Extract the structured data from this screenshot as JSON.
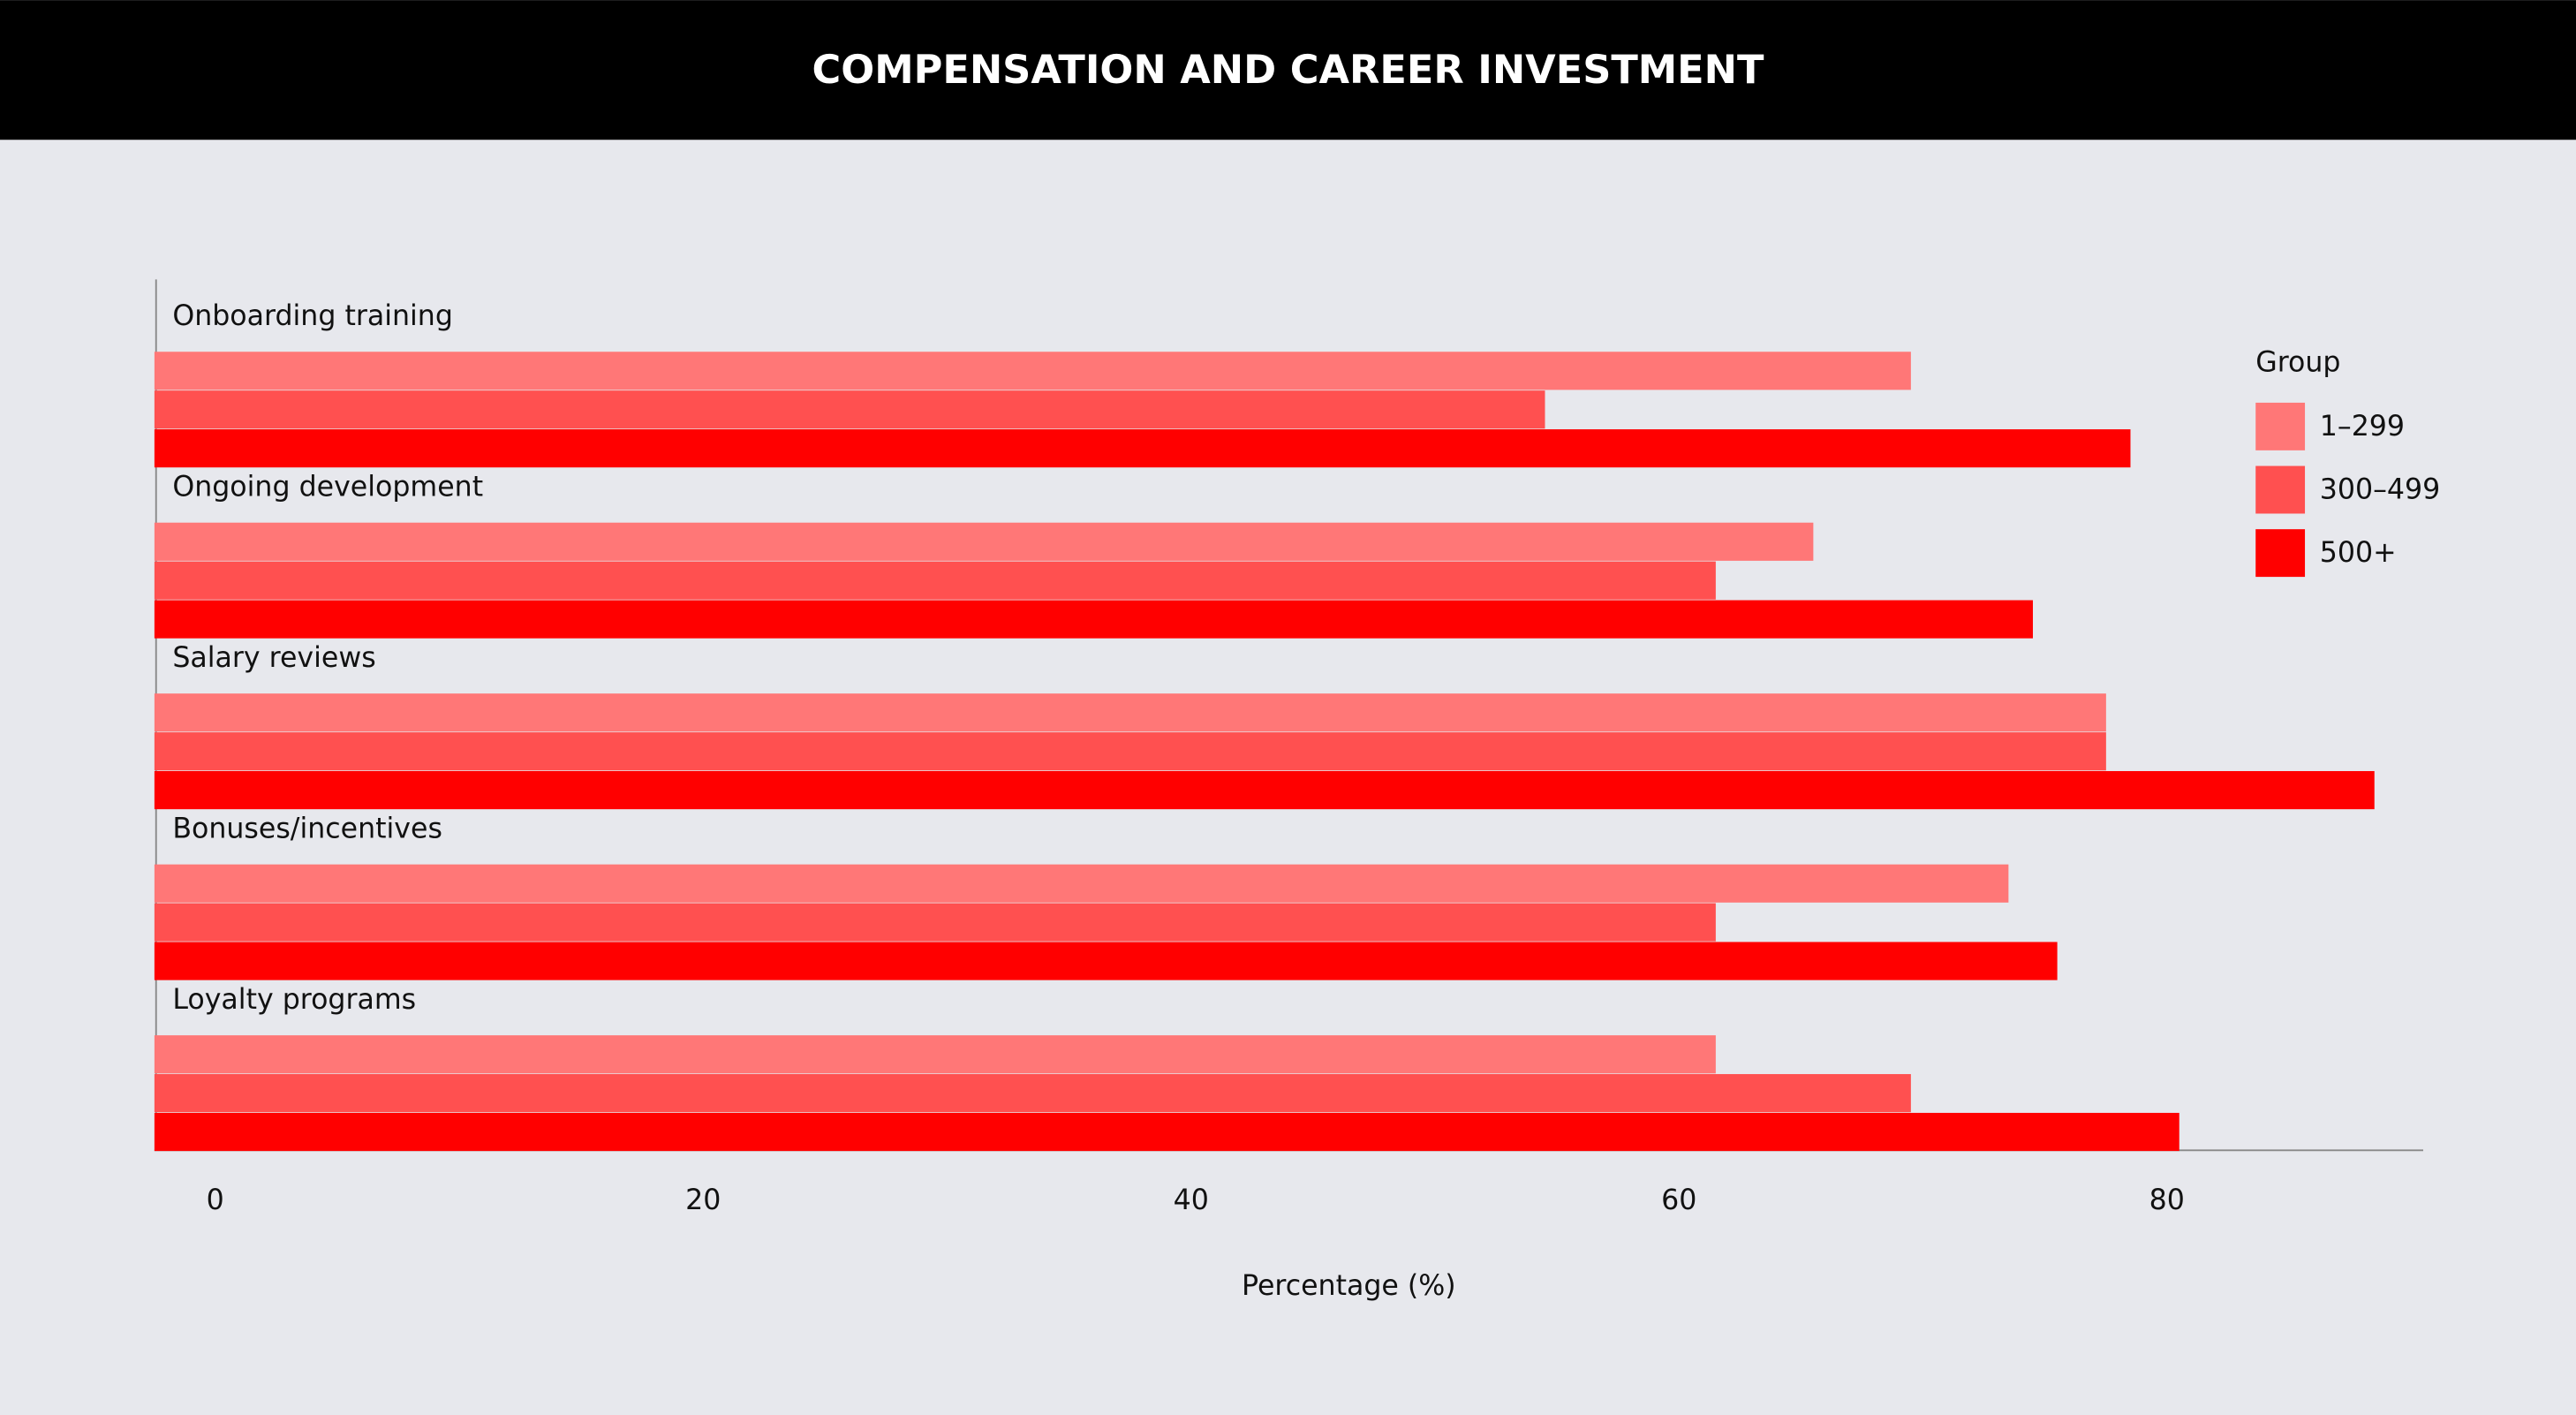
{
  "chart_data": {
    "type": "hbar",
    "title": "COMPENSATION AND CAREER INVESTMENT",
    "categories": [
      "Onboarding training",
      "Ongoing development",
      "Salary reviews",
      "Bonuses/incentives",
      "Loyalty programs"
    ],
    "series": [
      {
        "name": "1–299",
        "color": "#ff7777",
        "values": [
          72,
          68,
          80,
          76,
          64
        ]
      },
      {
        "name": "300–499",
        "color": "#ff5050",
        "values": [
          57,
          64,
          80,
          64,
          72
        ]
      },
      {
        "name": "500+",
        "color": "#ff0000",
        "values": [
          81,
          77,
          91,
          78,
          83
        ]
      }
    ],
    "legend_title": "Group",
    "legend_position": "right",
    "x_label": "Percentage (%)",
    "xlim": [
      0,
      93
    ],
    "xticks": [
      0,
      20,
      40,
      60,
      80
    ]
  }
}
